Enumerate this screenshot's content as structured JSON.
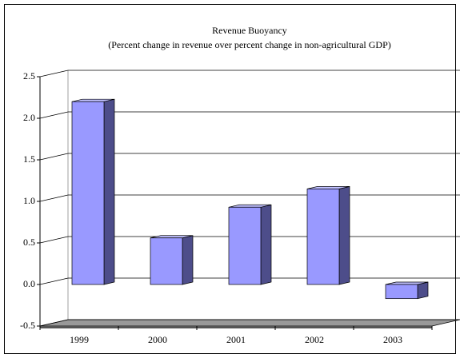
{
  "chart_data": {
    "type": "bar3d",
    "title": "Revenue Buoyancy",
    "subtitle": "(Percent change in revenue over percent change in non-agricultural GDP)",
    "categories": [
      "1999",
      "2000",
      "2001",
      "2002",
      "2003"
    ],
    "values": [
      2.2,
      0.56,
      0.93,
      1.15,
      -0.17
    ],
    "color": "#9999ff",
    "ylim": [
      -0.5,
      2.5
    ],
    "yticks": [
      -0.5,
      {
        "value": 0,
        "label": "0.0"
      },
      0.5,
      {
        "value": 1,
        "label": "1.0"
      },
      1.5,
      {
        "value": 2,
        "label": "2.0"
      },
      2.5
    ],
    "grid": true
  }
}
